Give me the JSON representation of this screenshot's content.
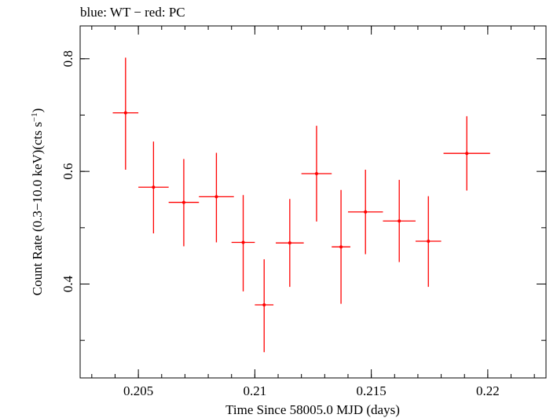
{
  "chart_data": {
    "type": "scatter",
    "title": "blue: WT − red: PC",
    "xlabel": "Time Since 58005.0 MJD (days)",
    "ylabel_main": "Count Rate (0.3−10.0 keV)(cts s",
    "ylabel_sup": "−1",
    "ylabel_close": ")",
    "xlim": [
      0.2025,
      0.2225
    ],
    "ylim": [
      0.2333,
      0.8583
    ],
    "x_ticks": [
      {
        "value": 0.205,
        "label": "0.205"
      },
      {
        "value": 0.21,
        "label": "0.21"
      },
      {
        "value": 0.215,
        "label": "0.215"
      },
      {
        "value": 0.22,
        "label": "0.22"
      }
    ],
    "x_minor_step": 0.001,
    "y_ticks": [
      {
        "value": 0.4,
        "label": "0.4"
      },
      {
        "value": 0.6,
        "label": "0.6"
      },
      {
        "value": 0.8,
        "label": "0.8"
      }
    ],
    "y_minor_step": 0.1,
    "grid": false,
    "series": [
      {
        "color": "#ff0000",
        "points": [
          {
            "x": 0.20445,
            "xerr": 0.00055,
            "y": 0.704,
            "yerr_low": 0.101,
            "yerr_high": 0.098
          },
          {
            "x": 0.20565,
            "xerr": 0.00065,
            "y": 0.572,
            "yerr_low": 0.082,
            "yerr_high": 0.081
          },
          {
            "x": 0.20695,
            "xerr": 0.00065,
            "y": 0.545,
            "yerr_low": 0.078,
            "yerr_high": 0.077
          },
          {
            "x": 0.20835,
            "xerr": 0.00075,
            "y": 0.555,
            "yerr_low": 0.081,
            "yerr_high": 0.078
          },
          {
            "x": 0.2095,
            "xerr": 0.0005,
            "y": 0.474,
            "yerr_low": 0.087,
            "yerr_high": 0.084
          },
          {
            "x": 0.2104,
            "xerr": 0.0004,
            "y": 0.363,
            "yerr_low": 0.084,
            "yerr_high": 0.081
          },
          {
            "x": 0.2115,
            "xerr": 0.0006,
            "y": 0.473,
            "yerr_low": 0.078,
            "yerr_high": 0.078
          },
          {
            "x": 0.21265,
            "xerr": 0.00065,
            "y": 0.596,
            "yerr_low": 0.085,
            "yerr_high": 0.085
          },
          {
            "x": 0.2137,
            "xerr": 0.0004,
            "y": 0.466,
            "yerr_low": 0.101,
            "yerr_high": 0.101
          },
          {
            "x": 0.21475,
            "xerr": 0.00075,
            "y": 0.528,
            "yerr_low": 0.075,
            "yerr_high": 0.075
          },
          {
            "x": 0.2162,
            "xerr": 0.0007,
            "y": 0.512,
            "yerr_low": 0.073,
            "yerr_high": 0.073
          },
          {
            "x": 0.21745,
            "xerr": 0.00055,
            "y": 0.476,
            "yerr_low": 0.081,
            "yerr_high": 0.08
          },
          {
            "x": 0.2191,
            "xerr": 0.001,
            "y": 0.632,
            "yerr_low": 0.066,
            "yerr_high": 0.066
          }
        ]
      }
    ]
  }
}
